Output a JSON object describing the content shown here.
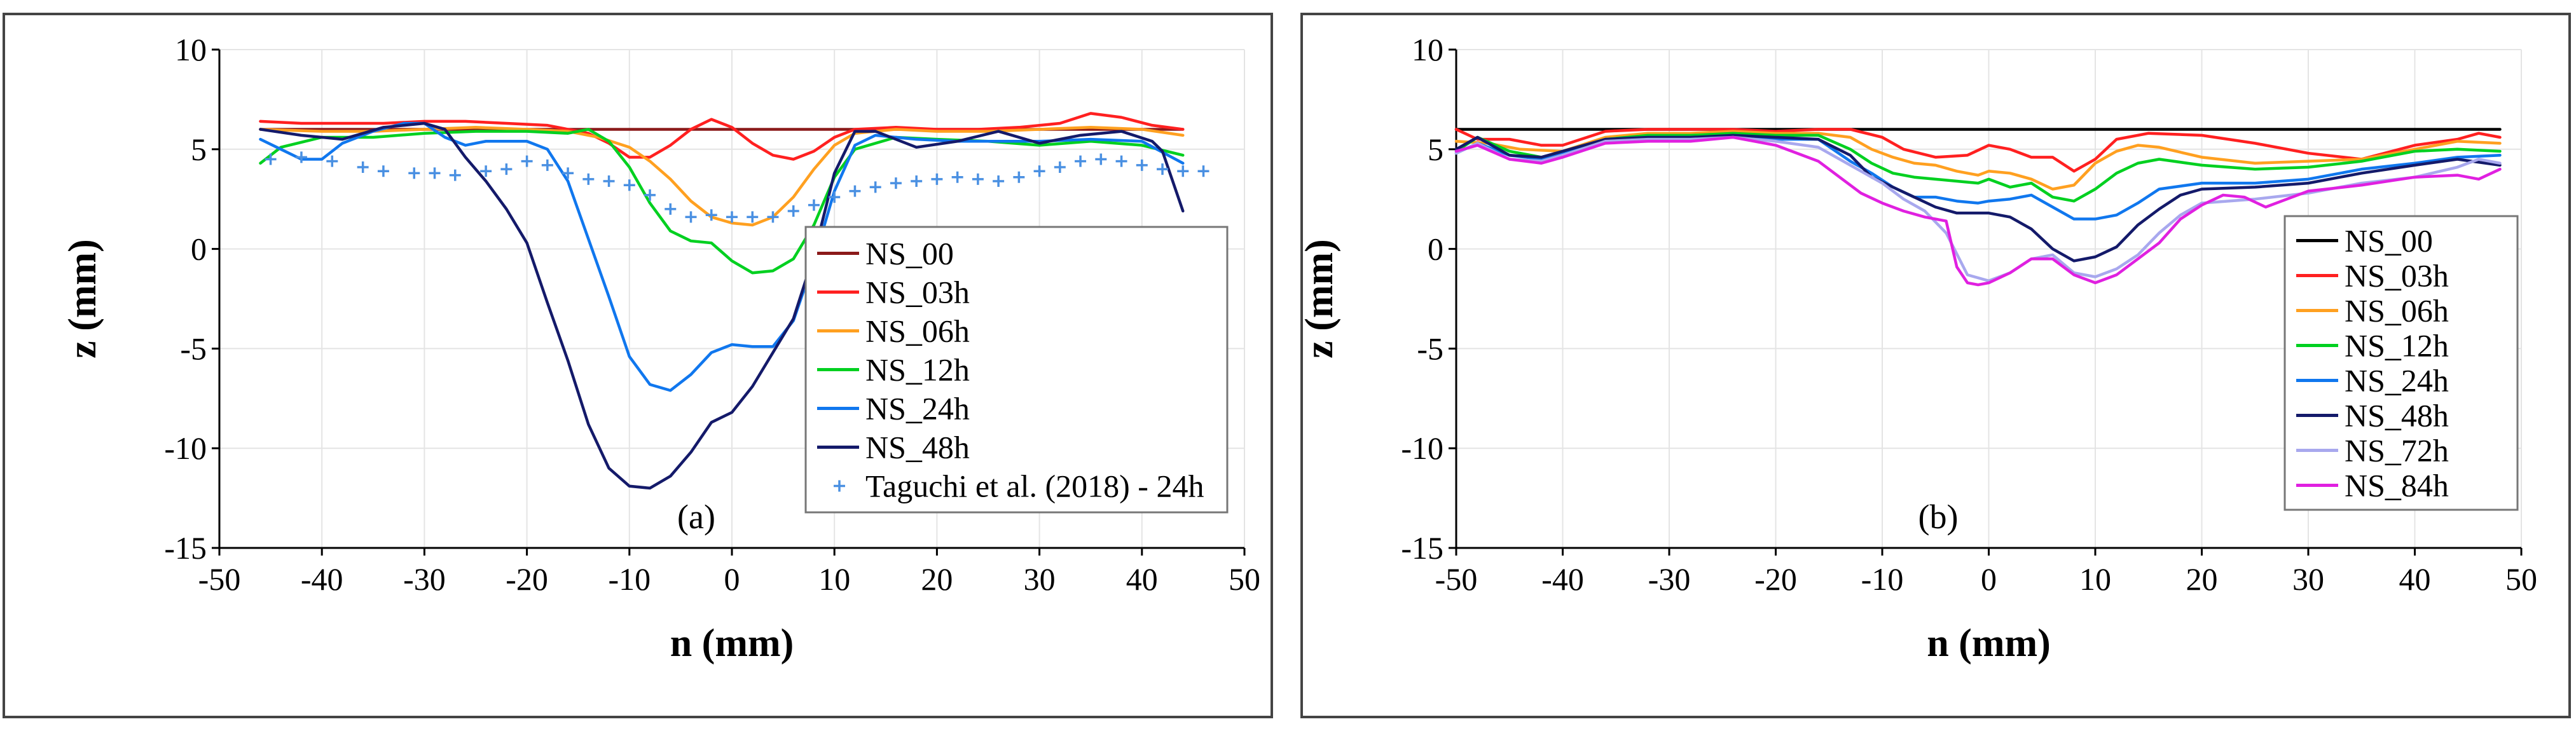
{
  "chart_data": [
    {
      "type": "line",
      "panel_label": "(a)",
      "xlabel": "n (mm)",
      "ylabel": "z (mm)",
      "xlim": [
        -50,
        50
      ],
      "ylim": [
        -15,
        10
      ],
      "xticks": [
        -50,
        -40,
        -30,
        -20,
        -10,
        0,
        10,
        20,
        30,
        40,
        50
      ],
      "yticks": [
        -15,
        -10,
        -5,
        0,
        5,
        10
      ],
      "grid": true,
      "legend_position": "bottom-right",
      "series": [
        {
          "name": "NS_00",
          "color": "#8b1a1a",
          "style": "line",
          "x": [
            -46,
            44
          ],
          "y": [
            6.0,
            6.0
          ]
        },
        {
          "name": "NS_03h",
          "color": "#ff2020",
          "style": "line",
          "x": [
            -46,
            -42,
            -38,
            -34,
            -30,
            -26,
            -22,
            -18,
            -16,
            -14,
            -12,
            -10,
            -8,
            -6,
            -4,
            -2,
            0,
            2,
            4,
            6,
            8,
            10,
            12,
            16,
            20,
            24,
            28,
            32,
            35,
            38,
            41,
            44
          ],
          "y": [
            6.4,
            6.3,
            6.3,
            6.3,
            6.4,
            6.4,
            6.3,
            6.2,
            6.0,
            5.8,
            5.3,
            4.6,
            4.6,
            5.2,
            6.0,
            6.5,
            6.1,
            5.3,
            4.7,
            4.5,
            4.9,
            5.6,
            6.0,
            6.1,
            6.0,
            6.0,
            6.1,
            6.3,
            6.8,
            6.6,
            6.2,
            6.0
          ]
        },
        {
          "name": "NS_06h",
          "color": "#ffa020",
          "style": "line",
          "x": [
            -46,
            -40,
            -35,
            -30,
            -25,
            -20,
            -16,
            -13,
            -10,
            -8,
            -6,
            -4,
            -2,
            0,
            2,
            4,
            6,
            8,
            10,
            12,
            16,
            20,
            25,
            30,
            35,
            40,
            44
          ],
          "y": [
            6.0,
            5.9,
            5.9,
            6.0,
            6.1,
            6.0,
            5.9,
            5.6,
            5.1,
            4.4,
            3.5,
            2.4,
            1.6,
            1.3,
            1.2,
            1.6,
            2.6,
            4.0,
            5.2,
            5.8,
            6.0,
            5.9,
            5.9,
            6.0,
            6.1,
            6.0,
            5.7
          ]
        },
        {
          "name": "NS_12h",
          "color": "#00d020",
          "style": "line",
          "x": [
            -46,
            -44,
            -40,
            -35,
            -30,
            -25,
            -20,
            -16,
            -14,
            -12,
            -10,
            -8,
            -6,
            -4,
            -2,
            0,
            2,
            4,
            6,
            8,
            10,
            12,
            16,
            20,
            25,
            30,
            35,
            40,
            44
          ],
          "y": [
            4.3,
            5.1,
            5.6,
            5.6,
            5.8,
            5.9,
            5.9,
            5.8,
            6.0,
            5.4,
            4.1,
            2.3,
            0.9,
            0.4,
            0.3,
            -0.6,
            -1.2,
            -1.1,
            -0.5,
            1.2,
            3.6,
            5.0,
            5.6,
            5.5,
            5.4,
            5.2,
            5.4,
            5.2,
            4.7
          ]
        },
        {
          "name": "NS_24h",
          "color": "#1077ee",
          "style": "line",
          "x": [
            -46,
            -44,
            -42,
            -40,
            -38,
            -35,
            -32,
            -30,
            -28,
            -26,
            -24,
            -20,
            -18,
            -16,
            -14,
            -12,
            -10,
            -8,
            -6,
            -4,
            -2,
            0,
            2,
            4,
            6,
            8,
            10,
            12,
            14,
            18,
            22,
            26,
            30,
            35,
            40,
            44
          ],
          "y": [
            5.5,
            5.0,
            4.5,
            4.5,
            5.3,
            5.9,
            6.3,
            6.3,
            5.6,
            5.2,
            5.4,
            5.4,
            5.0,
            3.4,
            0.5,
            -2.4,
            -5.4,
            -6.8,
            -7.1,
            -6.3,
            -5.2,
            -4.8,
            -4.9,
            -4.9,
            -3.6,
            -0.6,
            2.9,
            5.2,
            5.7,
            5.5,
            5.4,
            5.4,
            5.4,
            5.5,
            5.4,
            4.3
          ]
        },
        {
          "name": "NS_48h",
          "color": "#141a6a",
          "style": "line",
          "x": [
            -46,
            -42,
            -38,
            -34,
            -30,
            -28,
            -26,
            -24,
            -22,
            -20,
            -18,
            -16,
            -14,
            -12,
            -10,
            -8,
            -6,
            -4,
            -2,
            0,
            2,
            4,
            6,
            8,
            10,
            12,
            14,
            18,
            22,
            26,
            30,
            34,
            38,
            41,
            42,
            44
          ],
          "y": [
            6.0,
            5.7,
            5.5,
            6.1,
            6.3,
            6.0,
            4.6,
            3.4,
            2.0,
            0.3,
            -2.7,
            -5.6,
            -8.8,
            -11.0,
            -11.9,
            -12.0,
            -11.4,
            -10.2,
            -8.7,
            -8.2,
            -6.9,
            -5.2,
            -3.5,
            -0.3,
            3.8,
            5.9,
            5.9,
            5.1,
            5.4,
            5.9,
            5.3,
            5.7,
            5.9,
            5.4,
            4.9,
            1.9
          ]
        },
        {
          "name": "Taguchi et al. (2018) - 24h",
          "color": "#4a90e2",
          "style": "marker",
          "x": [
            -45,
            -42,
            -39,
            -36,
            -34,
            -31,
            -29,
            -27,
            -24,
            -22,
            -20,
            -18,
            -16,
            -14,
            -12,
            -10,
            -8,
            -6,
            -4,
            -2,
            0,
            2,
            4,
            6,
            8,
            10,
            12,
            14,
            16,
            18,
            20,
            22,
            24,
            26,
            28,
            30,
            32,
            34,
            36,
            38,
            40,
            42,
            44,
            46
          ],
          "y": [
            4.5,
            4.6,
            4.4,
            4.1,
            3.9,
            3.8,
            3.8,
            3.7,
            3.9,
            4.0,
            4.4,
            4.2,
            3.8,
            3.5,
            3.4,
            3.2,
            2.7,
            2.0,
            1.6,
            1.7,
            1.6,
            1.6,
            1.6,
            1.9,
            2.2,
            2.6,
            2.9,
            3.1,
            3.3,
            3.4,
            3.5,
            3.6,
            3.5,
            3.4,
            3.6,
            3.9,
            4.1,
            4.4,
            4.5,
            4.4,
            4.2,
            4.0,
            3.9,
            3.9
          ]
        }
      ]
    },
    {
      "type": "line",
      "panel_label": "(b)",
      "xlabel": "n (mm)",
      "ylabel": "z (mm)",
      "xlim": [
        -50,
        50
      ],
      "ylim": [
        -15,
        10
      ],
      "xticks": [
        -50,
        -40,
        -30,
        -20,
        -10,
        0,
        10,
        20,
        30,
        40,
        50
      ],
      "yticks": [
        -15,
        -10,
        -5,
        0,
        5,
        10
      ],
      "grid": true,
      "legend_position": "right",
      "series": [
        {
          "name": "NS_00",
          "color": "#000000",
          "style": "line",
          "x": [
            -50,
            48
          ],
          "y": [
            6.0,
            6.0
          ]
        },
        {
          "name": "NS_03h",
          "color": "#ff2020",
          "style": "line",
          "x": [
            -50,
            -48,
            -45,
            -42,
            -40,
            -36,
            -32,
            -28,
            -24,
            -20,
            -16,
            -13,
            -10,
            -8,
            -5,
            -2,
            0,
            2,
            4,
            6,
            8,
            10,
            12,
            15,
            20,
            25,
            30,
            35,
            40,
            44,
            46,
            48
          ],
          "y": [
            6.0,
            5.5,
            5.5,
            5.2,
            5.2,
            5.9,
            6.0,
            6.0,
            6.0,
            5.9,
            6.0,
            6.0,
            5.6,
            5.0,
            4.6,
            4.7,
            5.2,
            5.0,
            4.6,
            4.6,
            3.9,
            4.5,
            5.5,
            5.8,
            5.7,
            5.3,
            4.8,
            4.5,
            5.2,
            5.5,
            5.8,
            5.6
          ]
        },
        {
          "name": "NS_06h",
          "color": "#ffa020",
          "style": "line",
          "x": [
            -50,
            -47,
            -44,
            -40,
            -36,
            -32,
            -28,
            -24,
            -20,
            -16,
            -13,
            -11,
            -9,
            -7,
            -5,
            -3,
            -1,
            0,
            2,
            4,
            6,
            8,
            10,
            12,
            14,
            16,
            20,
            25,
            30,
            35,
            40,
            44,
            48
          ],
          "y": [
            5.4,
            5.3,
            5.0,
            4.9,
            5.6,
            5.8,
            5.8,
            5.9,
            5.8,
            5.8,
            5.6,
            5.0,
            4.6,
            4.3,
            4.2,
            3.9,
            3.7,
            3.9,
            3.8,
            3.5,
            3.0,
            3.2,
            4.3,
            4.9,
            5.2,
            5.1,
            4.6,
            4.3,
            4.4,
            4.5,
            5.0,
            5.4,
            5.3
          ]
        },
        {
          "name": "NS_12h",
          "color": "#00d020",
          "style": "line",
          "x": [
            -50,
            -48,
            -45,
            -42,
            -40,
            -36,
            -32,
            -28,
            -24,
            -20,
            -16,
            -13,
            -11,
            -9,
            -7,
            -5,
            -3,
            -1,
            0,
            2,
            4,
            6,
            8,
            10,
            12,
            14,
            16,
            20,
            25,
            30,
            35,
            40,
            44,
            48
          ],
          "y": [
            4.9,
            5.6,
            4.9,
            4.6,
            4.7,
            5.5,
            5.7,
            5.7,
            5.8,
            5.7,
            5.7,
            5.0,
            4.3,
            3.8,
            3.6,
            3.5,
            3.4,
            3.3,
            3.5,
            3.1,
            3.3,
            2.6,
            2.4,
            3.0,
            3.8,
            4.3,
            4.5,
            4.2,
            4.0,
            4.1,
            4.4,
            4.9,
            5.0,
            4.9
          ]
        },
        {
          "name": "NS_24h",
          "color": "#1077ee",
          "style": "line",
          "x": [
            -50,
            -48,
            -45,
            -42,
            -40,
            -36,
            -32,
            -28,
            -24,
            -20,
            -16,
            -13,
            -11,
            -9,
            -7,
            -5,
            -3,
            -1,
            0,
            2,
            4,
            6,
            8,
            10,
            12,
            14,
            16,
            20,
            25,
            30,
            35,
            40,
            44,
            48
          ],
          "y": [
            4.8,
            5.3,
            4.7,
            4.5,
            4.8,
            5.5,
            5.6,
            5.6,
            5.6,
            5.5,
            5.5,
            4.4,
            3.8,
            3.1,
            2.6,
            2.6,
            2.4,
            2.3,
            2.4,
            2.5,
            2.7,
            2.1,
            1.5,
            1.5,
            1.7,
            2.3,
            3.0,
            3.3,
            3.3,
            3.5,
            4.0,
            4.3,
            4.6,
            4.7
          ]
        },
        {
          "name": "NS_48h",
          "color": "#141a6a",
          "style": "line",
          "x": [
            -50,
            -48,
            -45,
            -42,
            -40,
            -36,
            -32,
            -28,
            -24,
            -20,
            -16,
            -13,
            -11,
            -9,
            -7,
            -5,
            -3,
            -1,
            0,
            2,
            4,
            6,
            8,
            10,
            12,
            14,
            16,
            18,
            20,
            25,
            30,
            35,
            40,
            44,
            48
          ],
          "y": [
            5.0,
            5.6,
            4.7,
            4.6,
            4.9,
            5.5,
            5.6,
            5.6,
            5.7,
            5.6,
            5.5,
            4.7,
            3.6,
            3.1,
            2.6,
            2.1,
            1.8,
            1.8,
            1.8,
            1.6,
            1.0,
            0.0,
            -0.6,
            -0.4,
            0.1,
            1.2,
            2.0,
            2.7,
            3.0,
            3.1,
            3.3,
            3.8,
            4.2,
            4.5,
            4.2
          ]
        },
        {
          "name": "NS_72h",
          "color": "#a8a8ee",
          "style": "line",
          "x": [
            -50,
            -48,
            -45,
            -42,
            -40,
            -36,
            -32,
            -28,
            -24,
            -20,
            -16,
            -13,
            -10,
            -8,
            -6,
            -4,
            -2,
            0,
            2,
            4,
            6,
            8,
            10,
            12,
            14,
            16,
            18,
            20,
            25,
            30,
            35,
            40,
            44,
            46,
            48
          ],
          "y": [
            4.8,
            5.3,
            4.5,
            4.4,
            4.7,
            5.4,
            5.5,
            5.5,
            5.6,
            5.4,
            5.1,
            4.2,
            3.3,
            2.5,
            1.9,
            0.8,
            -1.3,
            -1.6,
            -1.2,
            -0.5,
            -0.3,
            -1.2,
            -1.4,
            -1.0,
            -0.3,
            0.8,
            1.7,
            2.3,
            2.5,
            2.8,
            3.3,
            3.6,
            4.1,
            4.5,
            4.3
          ]
        },
        {
          "name": "NS_84h",
          "color": "#e020e0",
          "style": "line",
          "x": [
            -50,
            -48,
            -45,
            -42,
            -40,
            -36,
            -32,
            -28,
            -24,
            -20,
            -16,
            -12,
            -10,
            -8,
            -6,
            -4,
            -3,
            -2,
            -1,
            0,
            2,
            4,
            6,
            8,
            10,
            12,
            14,
            16,
            18,
            20,
            22,
            24,
            26,
            28,
            30,
            35,
            40,
            44,
            46,
            48
          ],
          "y": [
            4.9,
            5.2,
            4.5,
            4.3,
            4.6,
            5.3,
            5.4,
            5.4,
            5.6,
            5.2,
            4.4,
            2.8,
            2.3,
            1.9,
            1.6,
            1.4,
            -0.9,
            -1.7,
            -1.8,
            -1.7,
            -1.2,
            -0.5,
            -0.5,
            -1.3,
            -1.7,
            -1.3,
            -0.5,
            0.3,
            1.5,
            2.2,
            2.7,
            2.6,
            2.1,
            2.5,
            2.9,
            3.2,
            3.6,
            3.7,
            3.5,
            4.0
          ]
        }
      ]
    }
  ]
}
